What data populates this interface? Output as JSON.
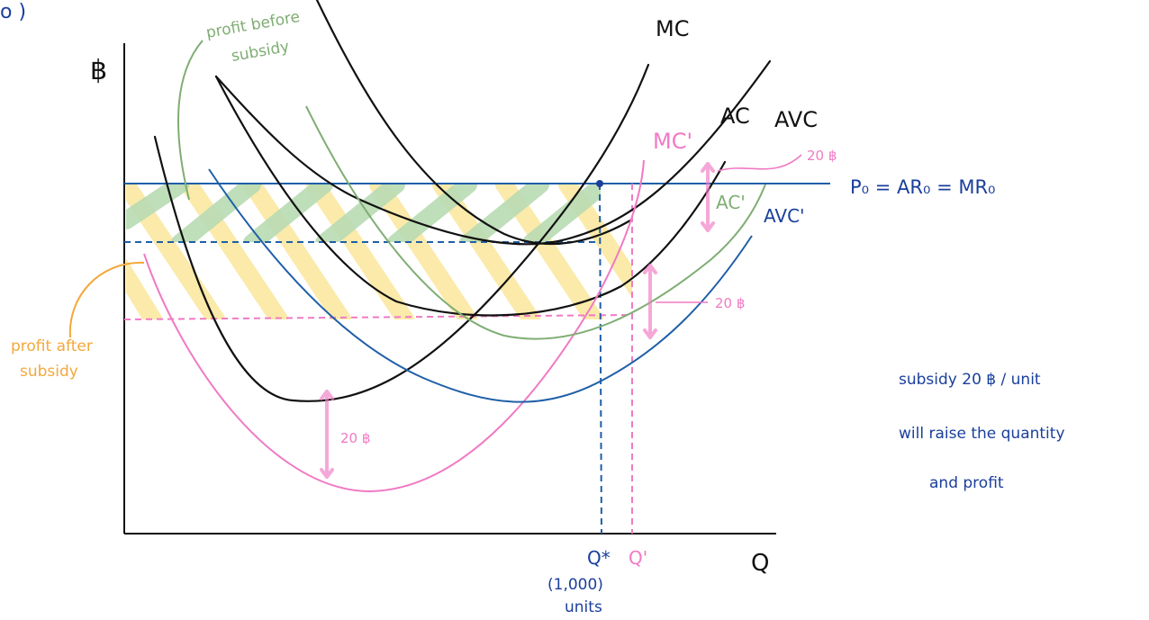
{
  "colors": {
    "black": "#111111",
    "blue": "#1f5fa8",
    "pink": "#f07ac4",
    "green": "#7fad73",
    "green_fill": "#b9dbb3",
    "yellow_fill": "#fbe9a6",
    "orange": "#f2a83b",
    "navy_text": "#1a3f9c"
  },
  "labels": {
    "corner": "o )",
    "y_axis": "฿",
    "x_axis": "Q",
    "mc": "MC",
    "ac": "AC",
    "avc": "AVC",
    "mc_prime": "MC'",
    "ac_prime": "AC'",
    "avc_prime": "AVC'",
    "price_line": "P₀ = AR₀ = MR₀",
    "q_star": "Q*",
    "q_star_units_1": "(1,000)",
    "q_star_units_2": "units",
    "q_prime": "Q'",
    "subsidy_right_top": "20 ฿",
    "subsidy_right_mid": "20 ฿",
    "subsidy_bottom": "20 ฿",
    "profit_before_1": "profit before",
    "profit_before_2": "subsidy",
    "profit_after_1": "profit after",
    "profit_after_2": "subsidy"
  },
  "note": {
    "line1": "subsidy 20 ฿ / unit",
    "line2": "will raise the quantity",
    "line3": "and profit"
  }
}
